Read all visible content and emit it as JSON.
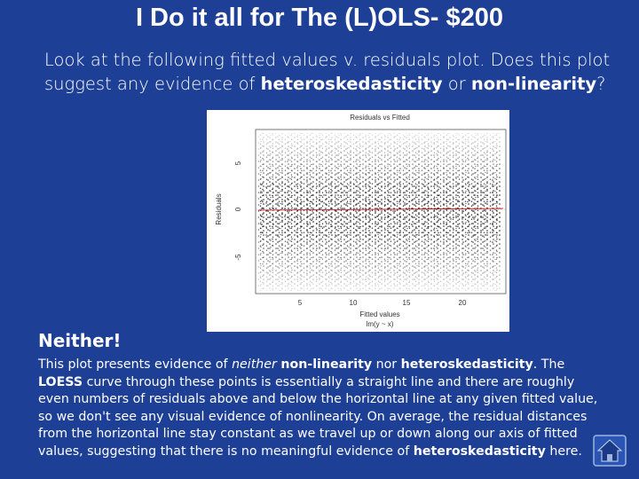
{
  "header": {
    "title": "I Do it all for The (L)OLS- $200"
  },
  "question": [
    {
      "text": "Look at the following fitted values v. residuals plot. Does this plot suggest any evidence of ",
      "bold": false
    },
    {
      "text": "heteroskedasticity",
      "bold": true
    },
    {
      "text": " or ",
      "bold": false
    },
    {
      "text": "non-linearity",
      "bold": true
    },
    {
      "text": "?",
      "bold": false
    }
  ],
  "figure": {
    "title": "Residuals vs Fitted",
    "y_label": "Residuals",
    "y_ticks": [
      "5",
      "0",
      "-5"
    ],
    "x_ticks": [
      "5",
      "10",
      "15",
      "20"
    ],
    "x_label": "Fitted values",
    "caption": "lm(y ~ x)"
  },
  "answer": {
    "heading": "Neither!",
    "body": [
      {
        "text": "This plot presents evidence of ",
        "style": "normal"
      },
      {
        "text": "neither ",
        "style": "italic"
      },
      {
        "text": "non-linearity",
        "style": "bold"
      },
      {
        "text": " nor ",
        "style": "normal"
      },
      {
        "text": "heteroskedasticity",
        "style": "bold"
      },
      {
        "text": ". The ",
        "style": "normal"
      },
      {
        "text": "LOESS",
        "style": "bold"
      },
      {
        "text": " curve through these points is essentially a straight line and there are roughly even numbers of residuals above and below the horizontal line at any given fitted value, so we don't see any visual evidence of nonlinearity. On average, the residual distances from the horizontal line stay constant as we travel up or down along our axis of fitted values, suggesting that there is no meaningful evidence of ",
        "style": "normal"
      },
      {
        "text": "heteroskedasticity",
        "style": "bold"
      },
      {
        "text": " here.",
        "style": "normal"
      }
    ]
  }
}
